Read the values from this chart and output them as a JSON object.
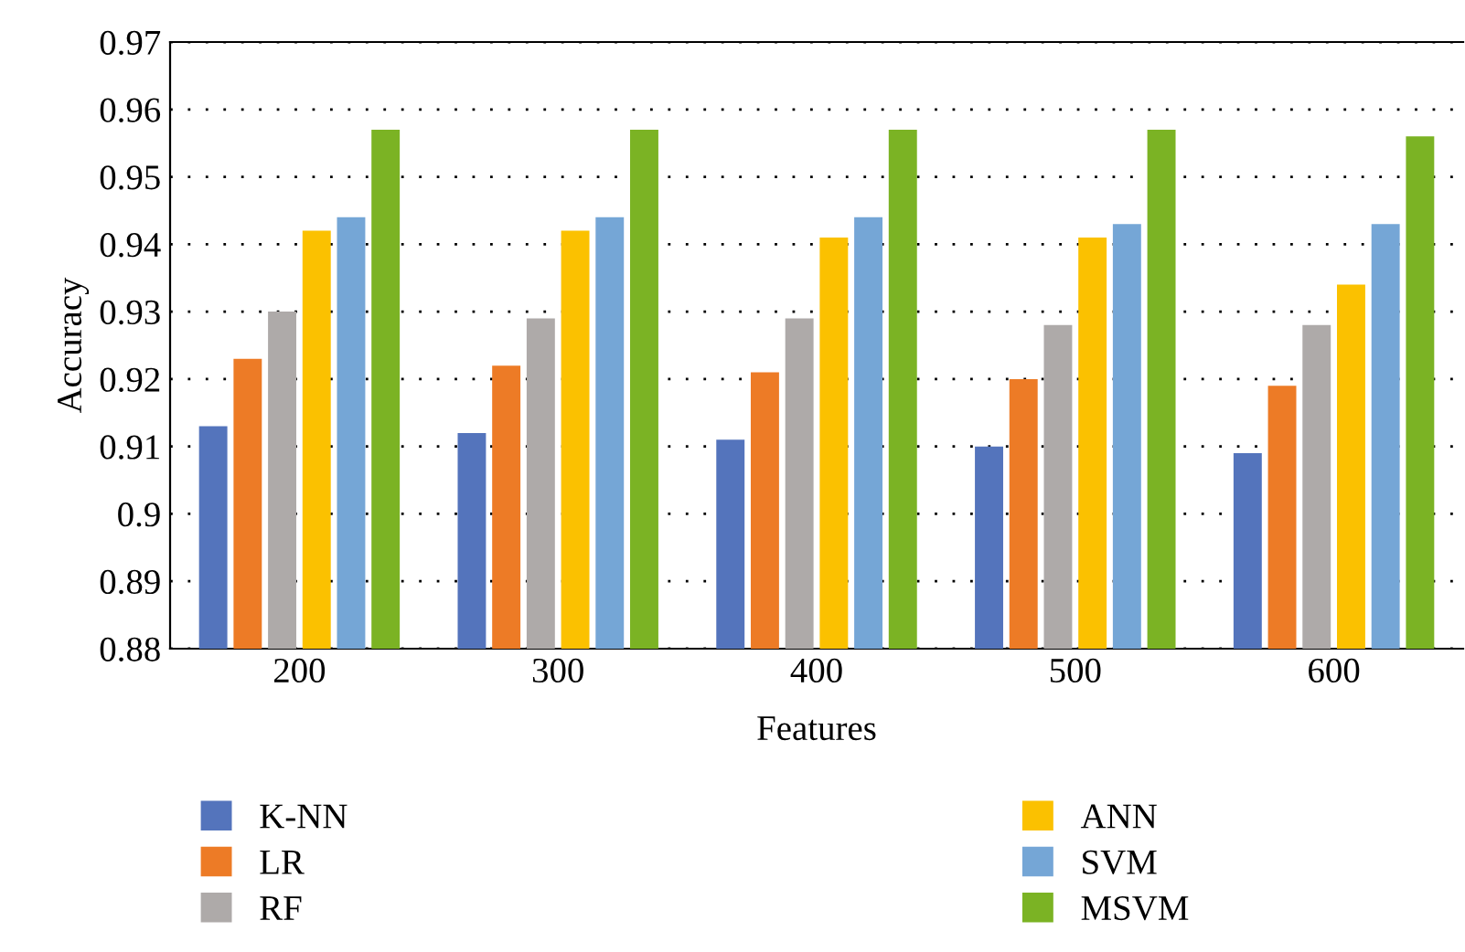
{
  "chart_data": {
    "type": "bar",
    "xlabel": "Features",
    "ylabel": "Accuracy",
    "categories": [
      "200",
      "300",
      "400",
      "500",
      "600"
    ],
    "series": [
      {
        "name": "K-NN",
        "color": "#5474bc",
        "values": [
          0.913,
          0.912,
          0.911,
          0.91,
          0.909
        ]
      },
      {
        "name": "LR",
        "color": "#ed7b26",
        "values": [
          0.923,
          0.922,
          0.921,
          0.92,
          0.919
        ]
      },
      {
        "name": "RF",
        "color": "#aeaaa9",
        "values": [
          0.93,
          0.929,
          0.929,
          0.928,
          0.928
        ]
      },
      {
        "name": "ANN",
        "color": "#fbc100",
        "values": [
          0.942,
          0.942,
          0.941,
          0.941,
          0.934
        ]
      },
      {
        "name": "SVM",
        "color": "#75a6d6",
        "values": [
          0.944,
          0.944,
          0.944,
          0.943,
          0.943
        ]
      },
      {
        "name": "MSVM",
        "color": "#7bb324",
        "values": [
          0.957,
          0.957,
          0.957,
          0.957,
          0.956
        ]
      }
    ],
    "ylim": [
      0.88,
      0.97
    ],
    "yticks": [
      0.88,
      0.89,
      0.9,
      0.91,
      0.92,
      0.93,
      0.94,
      0.95,
      0.96,
      0.97
    ],
    "grid": "y",
    "legend": "bottom"
  }
}
